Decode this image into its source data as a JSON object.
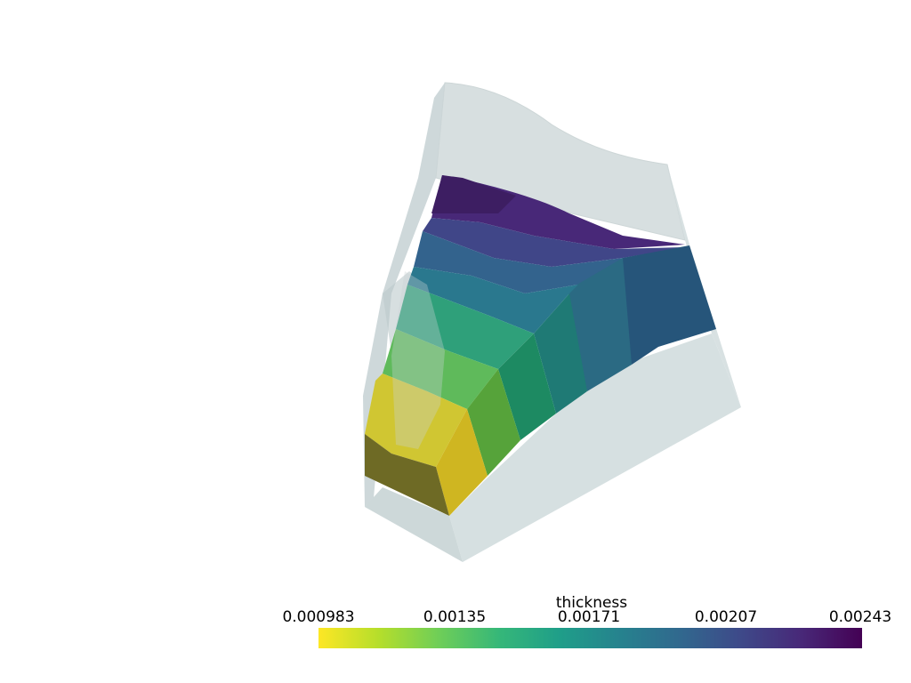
{
  "colorbar": {
    "title": "thickness",
    "colormap": "viridis_r",
    "tick_labels": [
      "0.000983",
      "0.00135",
      "0.00171",
      "0.00207",
      "0.00243"
    ],
    "range": [
      0.000983,
      0.00243
    ],
    "stops": [
      "#fde725",
      "#b5de2b",
      "#6ece58",
      "#35b779",
      "#1f9e89",
      "#26828e",
      "#31688e",
      "#3e4989",
      "#482878",
      "#440154"
    ]
  },
  "mesh": {
    "scalar": "thickness",
    "outline_color": "#cfd9da"
  }
}
